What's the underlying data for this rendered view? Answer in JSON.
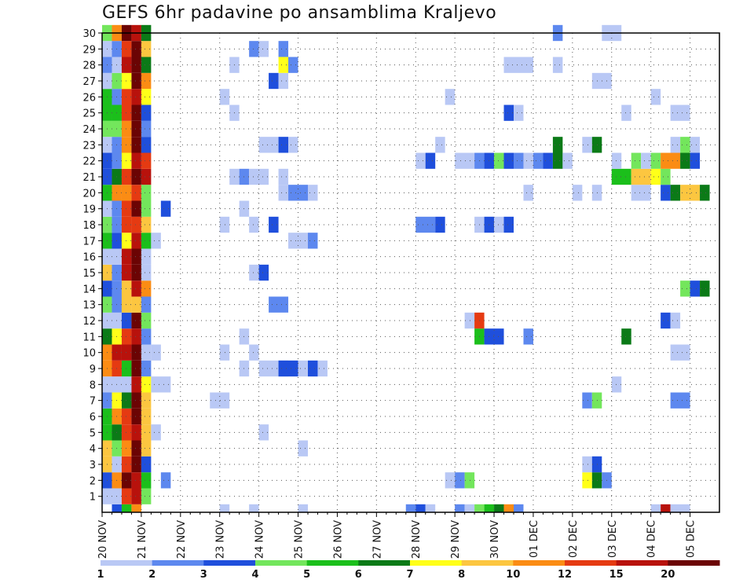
{
  "chart_data": {
    "type": "heatmap",
    "title": "GEFS 6hr padavine po ansamblima Kraljevo",
    "x_tick_labels": [
      "20 NOV",
      "21 NOV",
      "22 NOV",
      "23 NOV",
      "24 NOV",
      "25 NOV",
      "26 NOV",
      "27 NOV",
      "28 NOV",
      "29 NOV",
      "30 NOV",
      "01 DEC",
      "02 DEC",
      "03 DEC",
      "04 DEC",
      "05 DEC"
    ],
    "y_tick_labels": [
      "1",
      "2",
      "3",
      "4",
      "5",
      "6",
      "7",
      "8",
      "9",
      "10",
      "11",
      "12",
      "13",
      "14",
      "15",
      "16",
      "17",
      "18",
      "19",
      "20",
      "21",
      "22",
      "23",
      "24",
      "25",
      "26",
      "27",
      "28",
      "29",
      "30"
    ],
    "x_range_steps": [
      0,
      62
    ],
    "y_range": [
      0,
      30
    ],
    "grid": true,
    "colorbar": {
      "tick_labels": [
        "1",
        "2",
        "3",
        "4",
        "5",
        "6",
        "7",
        "8",
        "10",
        "12",
        "15",
        "20"
      ],
      "colors": [
        "#b9c8f5",
        "#5d88ef",
        "#1f4fdc",
        "#73e65c",
        "#1bbf1b",
        "#0b7a17",
        "#ffff19",
        "#fcc640",
        "#fb8c14",
        "#e53a12",
        "#b8120c",
        "#6b0404"
      ]
    },
    "levels_note": "cell values are colour class index 0..11 (0 = 1-2 mm, 11 = >20 mm)",
    "cells": [
      [
        0,
        0,
        3
      ],
      [
        0,
        1,
        9
      ],
      [
        0,
        2,
        11
      ],
      [
        0,
        3,
        10
      ],
      [
        0,
        4,
        6
      ],
      [
        1,
        0,
        0
      ],
      [
        1,
        1,
        2
      ],
      [
        1,
        2,
        9
      ],
      [
        1,
        3,
        11
      ],
      [
        1,
        4,
        7
      ],
      [
        2,
        0,
        1
      ],
      [
        2,
        1,
        1
      ],
      [
        2,
        2,
        10
      ],
      [
        2,
        3,
        11
      ],
      [
        2,
        4,
        7
      ],
      [
        5,
        4,
        0
      ],
      [
        6,
        4,
        1
      ],
      [
        2,
        0,
        4
      ],
      [
        2,
        1,
        0
      ],
      [
        2,
        2,
        8
      ],
      [
        2,
        3,
        10
      ],
      [
        2,
        4,
        8
      ],
      [
        7,
        4,
        1
      ],
      [
        2,
        0,
        3
      ],
      [
        2,
        1,
        2
      ],
      [
        2,
        2,
        10
      ],
      [
        2,
        3,
        11
      ],
      [
        2,
        4,
        10
      ],
      [
        5,
        4,
        0
      ],
      [
        2,
        0,
        5
      ],
      [
        2,
        1,
        0
      ],
      [
        2,
        2,
        9
      ],
      [
        2,
        3,
        10
      ],
      [
        2,
        4,
        2
      ],
      [
        11,
        4,
        0
      ],
      [
        12,
        4,
        0
      ],
      [
        13,
        4,
        0
      ],
      [
        2,
        0,
        4
      ],
      [
        2,
        1,
        5
      ],
      [
        2,
        2,
        10
      ],
      [
        2,
        3,
        11
      ],
      [
        2,
        4,
        0
      ],
      [
        26,
        4,
        0
      ],
      [
        2,
        0,
        8
      ],
      [
        2,
        1,
        1
      ],
      [
        2,
        2,
        7
      ],
      [
        2,
        3,
        11
      ],
      [
        2,
        4,
        2
      ],
      [
        11,
        4,
        1
      ],
      [
        24,
        4,
        2
      ],
      [
        26,
        4,
        1
      ],
      [
        35,
        4,
        0
      ],
      [
        2,
        0,
        4
      ],
      [
        2,
        1,
        1
      ],
      [
        2,
        2,
        10
      ],
      [
        2,
        3,
        11
      ],
      [
        2,
        4,
        0
      ],
      [
        2,
        0,
        7
      ],
      [
        2,
        1,
        3
      ],
      [
        2,
        2,
        9
      ],
      [
        2,
        3,
        10
      ],
      [
        2,
        4,
        2
      ],
      [
        11,
        4,
        0
      ],
      [
        12,
        4,
        0
      ],
      [
        2,
        0,
        3
      ],
      [
        2,
        1,
        0
      ],
      [
        2,
        2,
        11
      ],
      [
        2,
        3,
        10
      ],
      [
        2,
        4,
        0
      ],
      [
        4,
        4,
        0
      ],
      [
        14,
        4,
        0
      ],
      [
        15,
        4,
        0
      ],
      [
        16,
        4,
        0
      ],
      [
        17,
        4,
        0
      ],
      [
        18,
        4,
        0
      ],
      [
        19,
        4,
        0
      ],
      [
        20,
        4,
        0
      ],
      [
        21,
        4,
        0
      ],
      [
        22,
        4,
        0
      ],
      [
        23,
        4,
        0
      ],
      [
        24,
        4,
        0
      ],
      [
        25,
        4,
        0
      ],
      [
        26,
        4,
        0
      ],
      [
        27,
        4,
        0
      ],
      [
        28,
        4,
        0
      ],
      [
        29,
        4,
        0
      ],
      [
        30,
        4,
        0
      ],
      [
        31,
        4,
        0
      ],
      [
        32,
        4,
        0
      ],
      [
        33,
        4,
        0
      ],
      [
        34,
        4,
        0
      ],
      [
        35,
        4,
        0
      ],
      [
        36,
        4,
        0
      ],
      [
        37,
        4,
        0
      ],
      [
        38,
        4,
        0
      ],
      [
        39,
        4,
        0
      ],
      [
        40,
        4,
        0
      ],
      [
        41,
        4,
        0
      ],
      [
        42,
        4,
        0
      ],
      [
        43,
        4,
        0
      ],
      [
        44,
        4,
        0
      ],
      [
        45,
        4,
        0
      ],
      [
        46,
        4,
        0
      ],
      [
        47,
        4,
        0
      ],
      [
        48,
        4,
        0
      ],
      [
        49,
        4,
        0
      ],
      [
        50,
        4,
        0
      ],
      [
        51,
        4,
        0
      ],
      [
        52,
        4,
        0
      ],
      [
        53,
        4,
        0
      ],
      [
        54,
        4,
        0
      ],
      [
        55,
        4,
        0
      ],
      [
        56,
        4,
        0
      ],
      [
        57,
        4,
        0
      ],
      [
        58,
        4,
        0
      ],
      [
        59,
        4,
        0
      ],
      [
        60,
        4,
        0
      ],
      [
        61,
        4,
        0
      ],
      [
        62,
        4,
        0
      ]
    ]
  }
}
